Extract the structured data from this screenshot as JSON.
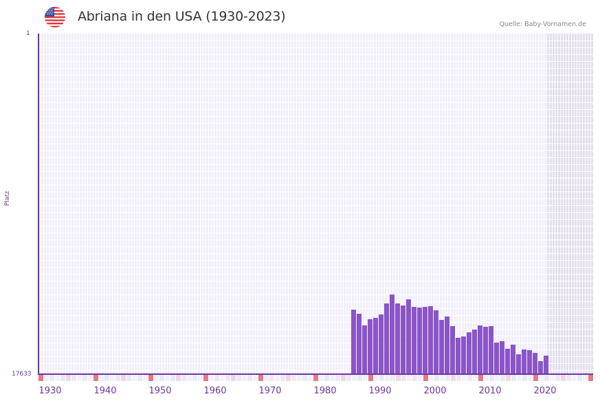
{
  "header": {
    "flag_icon": "us-flag-icon",
    "title": "Abriana in den USA (1930-2023)",
    "source": "Quelle: Baby-Vornamen.de"
  },
  "colors": {
    "bar": "#8b55c8",
    "axis": "#6b35a0",
    "plot_bg": "#f1eefb",
    "future_bg": "#e3dfee",
    "decade_marker": "#e57a82",
    "half_decade_marker": "#f4d6df"
  },
  "axis": {
    "y_label": "Platz",
    "y_top": "1",
    "y_bottom": "17633",
    "x_ticks": [
      "1930",
      "1940",
      "1950",
      "1960",
      "1970",
      "1980",
      "1990",
      "2000",
      "2010",
      "2020"
    ]
  },
  "chart_data": {
    "type": "bar",
    "title": "Abriana in den USA (1930-2023)",
    "subtitle": "Quelle: Baby-Vornamen.de",
    "xlabel": "",
    "ylabel": "Platz",
    "y_inverted": true,
    "ylim": [
      1,
      17633
    ],
    "xlim": [
      1930,
      2030
    ],
    "grid": true,
    "legend": null,
    "note": "Bars grow upward from the bottom (rank 17633); taller bar = better (lower) rank. Values estimated from pixel heights.",
    "x_ticks": [
      1930,
      1940,
      1950,
      1960,
      1970,
      1980,
      1990,
      2000,
      2010,
      2020
    ],
    "categories": [
      1987,
      1988,
      1989,
      1990,
      1991,
      1992,
      1993,
      1994,
      1995,
      1996,
      1997,
      1998,
      1999,
      2000,
      2001,
      2002,
      2003,
      2004,
      2005,
      2006,
      2007,
      2008,
      2009,
      2010,
      2011,
      2012,
      2013,
      2014,
      2015,
      2016,
      2017,
      2018,
      2019,
      2020,
      2021,
      2022
    ],
    "values": [
      14292,
      14505,
      15110,
      14790,
      14719,
      14541,
      13972,
      13510,
      13972,
      14079,
      13759,
      14150,
      14186,
      14150,
      14115,
      14328,
      14826,
      14648,
      15146,
      15750,
      15679,
      15466,
      15324,
      15110,
      15181,
      15146,
      15999,
      15928,
      16319,
      16106,
      16603,
      16355,
      16390,
      16532,
      16959,
      16674
    ]
  }
}
